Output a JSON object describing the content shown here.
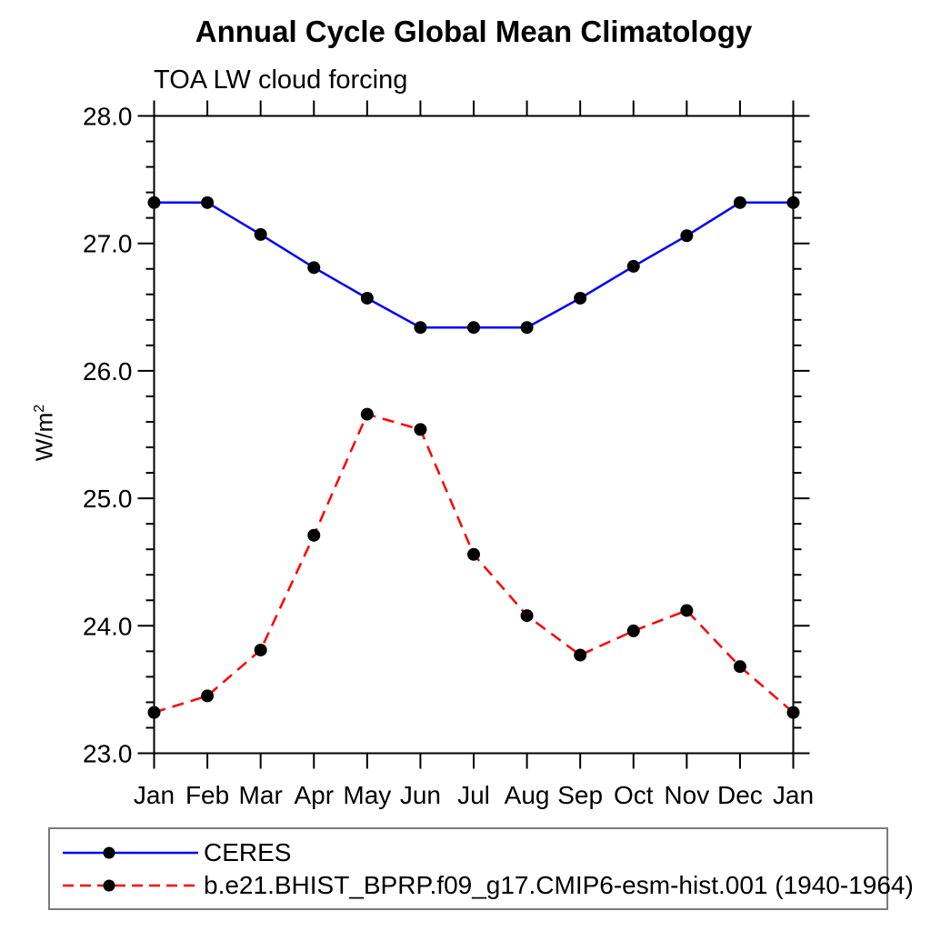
{
  "chart": {
    "title": "Annual Cycle Global Mean Climatology",
    "subtitle": "TOA LW cloud forcing",
    "ylabel_base": "W/m",
    "ylabel_exp": "2",
    "background_color": "#ffffff",
    "axis_color": "#000000",
    "legend_border_color": "#7a7a7a"
  },
  "chart_data": {
    "type": "line",
    "title": "Annual Cycle Global Mean Climatology",
    "subtitle": "TOA LW cloud forcing",
    "ylabel": "W/m2",
    "xlabel": "",
    "categories": [
      "Jan",
      "Feb",
      "Mar",
      "Apr",
      "May",
      "Jun",
      "Jul",
      "Aug",
      "Sep",
      "Oct",
      "Nov",
      "Dec",
      "Jan"
    ],
    "ylim": [
      23.0,
      28.0
    ],
    "ytick_major": 1.0,
    "ytick_minor": 0.2,
    "ytick_labels": [
      "23.0",
      "24.0",
      "25.0",
      "26.0",
      "27.0",
      "28.0"
    ],
    "grid": false,
    "legend_position": "bottom",
    "series": [
      {
        "name": "CERES",
        "color": "#0000ff",
        "line_style": "solid",
        "marker": "filled-circle",
        "marker_color": "#000000",
        "values": [
          27.32,
          27.32,
          27.07,
          26.81,
          26.57,
          26.34,
          26.34,
          26.34,
          26.57,
          26.82,
          27.06,
          27.32,
          27.32
        ]
      },
      {
        "name": "b.e21.BHIST_BPRP.f09_g17.CMIP6-esm-hist.001 (1940-1964)",
        "color": "#ff0000",
        "line_style": "dashed",
        "marker": "filled-circle",
        "marker_color": "#000000",
        "values": [
          23.32,
          23.45,
          23.81,
          24.71,
          25.66,
          25.54,
          24.56,
          24.08,
          23.77,
          23.96,
          24.12,
          23.68,
          23.32
        ]
      }
    ]
  }
}
